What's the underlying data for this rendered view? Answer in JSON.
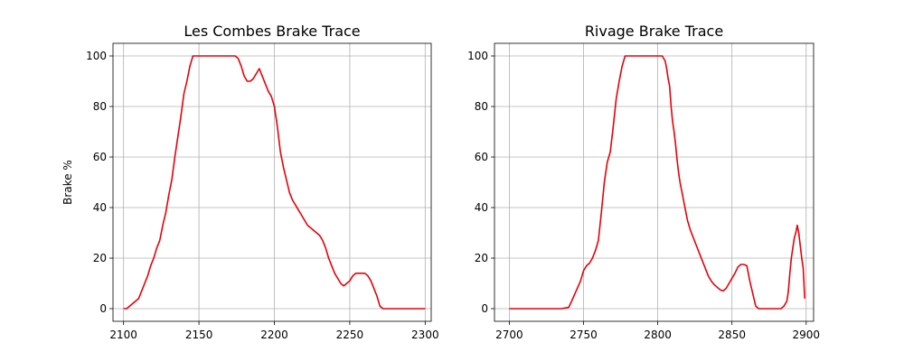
{
  "chart_data": [
    {
      "type": "line",
      "title": "Les Combes Brake Trace",
      "xlabel": "",
      "ylabel": "Brake %",
      "xlim": [
        2093,
        2304
      ],
      "ylim": [
        -5,
        105
      ],
      "xticks": [
        2100,
        2150,
        2200,
        2250,
        2300
      ],
      "yticks": [
        0,
        20,
        40,
        60,
        80,
        100
      ],
      "grid": true,
      "color": "#e8000b",
      "x": [
        2100,
        2102,
        2104,
        2106,
        2108,
        2110,
        2112,
        2114,
        2116,
        2118,
        2120,
        2122,
        2124,
        2126,
        2128,
        2130,
        2132,
        2134,
        2136,
        2138,
        2140,
        2142,
        2144,
        2146,
        2150,
        2160,
        2170,
        2174,
        2176,
        2178,
        2180,
        2182,
        2184,
        2186,
        2188,
        2190,
        2192,
        2194,
        2196,
        2198,
        2200,
        2202,
        2204,
        2206,
        2208,
        2210,
        2212,
        2214,
        2216,
        2218,
        2220,
        2222,
        2224,
        2226,
        2228,
        2230,
        2232,
        2234,
        2236,
        2238,
        2240,
        2242,
        2244,
        2246,
        2248,
        2250,
        2252,
        2254,
        2256,
        2258,
        2260,
        2262,
        2264,
        2266,
        2268,
        2270,
        2272,
        2274,
        2280,
        2290,
        2300
      ],
      "y": [
        0,
        0,
        1,
        2,
        3,
        4,
        7,
        10,
        13,
        17,
        20,
        24,
        27,
        33,
        38,
        45,
        51,
        60,
        68,
        76,
        85,
        90,
        96,
        100,
        100,
        100,
        100,
        100,
        99,
        96,
        92,
        90,
        90,
        91,
        93,
        95,
        92,
        89,
        86,
        84,
        80,
        72,
        62,
        56,
        51,
        46,
        43,
        41,
        39,
        37,
        35,
        33,
        32,
        31,
        30,
        29,
        27,
        24,
        20,
        17,
        14,
        12,
        10,
        9,
        10,
        11,
        13,
        14,
        14,
        14,
        14,
        13,
        11,
        8,
        5,
        1,
        0,
        0,
        0,
        0,
        0
      ]
    },
    {
      "type": "line",
      "title": "Rivage Brake Trace",
      "xlabel": "",
      "ylabel": "",
      "xlim": [
        2690,
        2905
      ],
      "ylim": [
        -5,
        105
      ],
      "xticks": [
        2700,
        2750,
        2800,
        2850,
        2900
      ],
      "yticks": [
        0,
        20,
        40,
        60,
        80,
        100
      ],
      "grid": true,
      "color": "#e8000b",
      "x": [
        2700,
        2720,
        2735,
        2740,
        2742,
        2745,
        2748,
        2750,
        2752,
        2754,
        2756,
        2758,
        2760,
        2762,
        2764,
        2766,
        2768,
        2770,
        2772,
        2774,
        2776,
        2778,
        2780,
        2790,
        2800,
        2803,
        2805,
        2806,
        2807,
        2808,
        2809,
        2810,
        2811,
        2812,
        2813,
        2814,
        2815,
        2816,
        2818,
        2820,
        2822,
        2824,
        2826,
        2828,
        2830,
        2832,
        2834,
        2836,
        2838,
        2840,
        2842,
        2844,
        2846,
        2848,
        2850,
        2852,
        2854,
        2856,
        2858,
        2860,
        2862,
        2864,
        2866,
        2868,
        2870,
        2875,
        2880,
        2883,
        2885,
        2887,
        2888,
        2889,
        2890,
        2891,
        2892,
        2893,
        2894,
        2895,
        2896,
        2897,
        2898,
        2899
      ],
      "y": [
        0,
        0,
        0,
        0.5,
        3,
        7,
        11,
        15,
        17,
        18,
        20,
        23,
        27,
        38,
        50,
        58,
        62,
        72,
        83,
        90,
        96,
        100,
        100,
        100,
        100,
        100,
        98,
        95,
        91,
        88,
        80,
        74,
        70,
        65,
        59,
        54,
        50,
        47,
        41,
        35,
        31,
        28,
        25,
        22,
        19,
        16,
        13,
        11,
        9.5,
        8.5,
        7.5,
        7,
        8,
        10,
        12,
        14,
        16.5,
        17.5,
        17.5,
        17,
        11,
        6,
        1,
        0,
        0,
        0,
        0,
        0,
        1,
        3,
        7,
        14,
        20,
        24,
        28,
        30,
        33,
        30,
        25,
        20,
        16,
        4
      ]
    }
  ]
}
